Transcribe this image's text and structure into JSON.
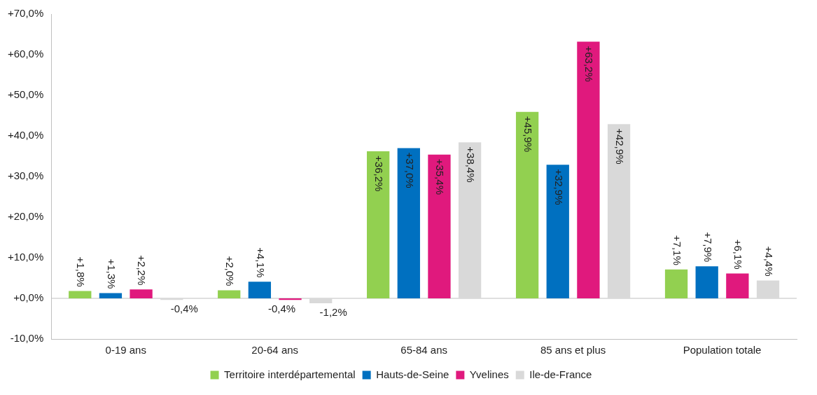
{
  "chart_data": {
    "type": "bar",
    "categories": [
      "0-19 ans",
      "20-64 ans",
      "65-84 ans",
      "85 ans et plus",
      "Population totale"
    ],
    "series": [
      {
        "name": "Territoire interdépartemental",
        "color": "#92d050",
        "values": [
          1.8,
          2.0,
          36.2,
          45.9,
          7.1
        ],
        "value_labels": [
          "+1,8%",
          "+2,0%",
          "+36,2%",
          "+45,9%",
          "+7,1%"
        ]
      },
      {
        "name": "Hauts-de-Seine",
        "color": "#0070c0",
        "values": [
          1.3,
          4.1,
          37.0,
          32.9,
          7.9
        ],
        "value_labels": [
          "+1,3%",
          "+4,1%",
          "+37,0%",
          "+32,9%",
          "+7,9%"
        ]
      },
      {
        "name": "Yvelines",
        "color": "#e0197d",
        "values": [
          2.2,
          -0.4,
          35.4,
          63.2,
          6.1
        ],
        "value_labels": [
          "+2,2%",
          "-0,4%",
          "+35,4%",
          "+63,2%",
          "+6,1%"
        ]
      },
      {
        "name": "Ile-de-France",
        "color": "#d9d9d9",
        "values": [
          -0.4,
          -1.2,
          38.4,
          42.9,
          4.4
        ],
        "value_labels": [
          "-0,4%",
          "-1,2%",
          "+38,4%",
          "+42,9%",
          "+4,4%"
        ]
      }
    ],
    "ylim": [
      -10,
      70
    ],
    "yticks": [
      {
        "value": -10,
        "label": "-10,0%"
      },
      {
        "value": 0,
        "label": "+0,0%"
      },
      {
        "value": 10,
        "label": "+10,0%"
      },
      {
        "value": 20,
        "label": "+20,0%"
      },
      {
        "value": 30,
        "label": "+30,0%"
      },
      {
        "value": 40,
        "label": "+40,0%"
      },
      {
        "value": 50,
        "label": "+50,0%"
      },
      {
        "value": 60,
        "label": "+60,0%"
      },
      {
        "value": 70,
        "label": "+70,0%"
      }
    ],
    "ref_lines": [
      {
        "axis": "y",
        "value": 0,
        "color": "#bfbfbf"
      }
    ],
    "grid": false,
    "legend": "bottom"
  }
}
